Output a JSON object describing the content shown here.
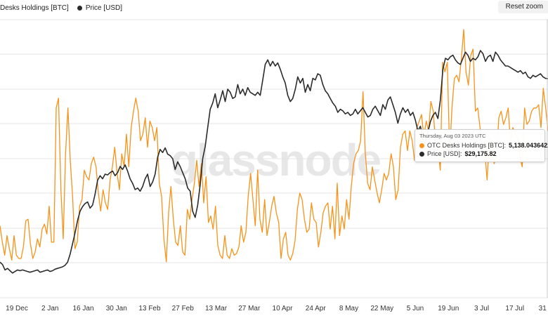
{
  "legend": {
    "otc_label": "Desks Holdings [BTC]",
    "price_label": "Price [USD]"
  },
  "toolbar": {
    "reset_zoom_label": "Reset zoom"
  },
  "watermark": "glassnode",
  "tooltip": {
    "date": "Thursday, Aug 03 2023 UTC",
    "otc_label": "OTC Desks Holdings [BTC]:",
    "otc_value": "5,138.04364217",
    "price_label": "Price [USD]:",
    "price_value": "$29,175.82"
  },
  "colors": {
    "otc": "#f7931a",
    "price": "#2b2b2b",
    "grid": "#e6e6e6",
    "background": "#ffffff"
  },
  "chart_data": {
    "type": "line",
    "title": "",
    "x_tick_labels": [
      "19 Dec",
      "2 Jan",
      "16 Jan",
      "30 Jan",
      "13 Feb",
      "27 Feb",
      "13 Mar",
      "27 Mar",
      "10 Apr",
      "24 Apr",
      "8 May",
      "22 May",
      "5 Jun",
      "19 Jun",
      "3 Jul",
      "17 Jul",
      "31 Jul"
    ],
    "xlabel": "",
    "ylabel": "",
    "grid": true,
    "legend_position": "top-left",
    "price_ylim": [
      15000,
      33000
    ],
    "otc_ylim": [
      0,
      8500
    ],
    "series": [
      {
        "name": "OTC Desks Holdings [BTC]",
        "axis": "left",
        "color": "#f7931a",
        "values": [
          2200,
          1700,
          1300,
          1900,
          1500,
          1150,
          1900,
          1300,
          1200,
          1200,
          1550,
          2350,
          2400,
          1650,
          1200,
          1400,
          1800,
          1550,
          2100,
          2250,
          1950,
          2800,
          1700,
          1700,
          5800,
          6100,
          3300,
          1800,
          4400,
          5800,
          4200,
          3100,
          1500,
          1700,
          2800,
          3000,
          3900,
          3700,
          3600,
          4100,
          4300,
          4000,
          3200,
          2650,
          3300,
          2900,
          2700,
          3600,
          4000,
          4600,
          3800,
          3300,
          4400,
          4000,
          5000,
          4000,
          5200,
          5700,
          6100,
          5700,
          4800,
          5000,
          5500,
          4600,
          5400,
          5200,
          4800,
          5200,
          3500,
          3100,
          1800,
          1100,
          2600,
          3400,
          2400,
          1700,
          1600,
          2200,
          1400,
          1300,
          2700,
          2400,
          3000,
          3500,
          4200,
          3400,
          4100,
          2900,
          3700,
          2300,
          2500,
          2100,
          2800,
          1600,
          1300,
          1200,
          1900,
          1300,
          1200,
          1500,
          1300,
          1350,
          1550,
          2200,
          1700,
          2000,
          3100,
          3800,
          3000,
          2200,
          3900,
          2400,
          2000,
          3000,
          1900,
          2300,
          2800,
          3100,
          2600,
          2300,
          1200,
          1800,
          2000,
          1300,
          1150,
          1350,
          1750,
          2700,
          3200,
          3000,
          2400,
          2000,
          2100,
          2900,
          2400,
          2300,
          1550,
          2000,
          2600,
          2800,
          2900,
          2100,
          2800,
          1800,
          3500,
          1900,
          2500,
          2100,
          3000,
          2400,
          3400,
          4100,
          4400,
          4500,
          4800,
          6300,
          4400,
          3500,
          3300,
          4000,
          3600,
          3200,
          2900,
          3300,
          3800,
          3600,
          3800,
          4400,
          4000,
          3000,
          3300,
          4600,
          5000,
          5100,
          4500,
          5100,
          4800,
          4200,
          5200,
          5400,
          5600,
          4900,
          5400,
          5100,
          6000,
          5700,
          4700,
          4600,
          3900,
          7200,
          6900,
          7200,
          4400,
          5800,
          6700,
          6800,
          6600,
          7300,
          8200,
          6900,
          6500,
          7400,
          7600,
          5700,
          5800,
          5200,
          4300,
          4500,
          3600,
          4900,
          4700,
          4100,
          4300,
          5500,
          5700,
          5300,
          5500,
          5800,
          4700,
          5200,
          5000,
          4900,
          4300,
          4000,
          5800,
          5300,
          5400,
          5700,
          5800,
          5800,
          5900,
          5200,
          6400,
          5800,
          5100
        ]
      },
      {
        "name": "Price [USD]",
        "axis": "right",
        "color": "#2b2b2b",
        "values": [
          17300,
          17150,
          16800,
          16900,
          16750,
          16600,
          16700,
          16800,
          16750,
          16800,
          16750,
          16700,
          16650,
          16700,
          16750,
          16800,
          16650,
          16700,
          16750,
          16800,
          16700,
          16750,
          16850,
          16900,
          16950,
          17000,
          17100,
          17300,
          17800,
          18500,
          19200,
          20000,
          20600,
          20900,
          21100,
          21200,
          20800,
          21000,
          21700,
          22600,
          22900,
          22700,
          23000,
          22950,
          23100,
          23200,
          22900,
          23100,
          23500,
          23300,
          23600,
          23200,
          22700,
          22400,
          22000,
          22100,
          21900,
          22200,
          22700,
          23000,
          22200,
          22500,
          23000,
          24100,
          24600,
          24400,
          24700,
          24300,
          24200,
          24000,
          23300,
          23800,
          23500,
          23100,
          22700,
          22100,
          21900,
          20600,
          20200,
          21000,
          22300,
          24000,
          24800,
          26000,
          27200,
          27600,
          28200,
          27300,
          27800,
          28400,
          27700,
          28500,
          28300,
          27900,
          28000,
          28800,
          28200,
          28500,
          28100,
          28600,
          28300,
          28200,
          28100,
          28300,
          28100,
          29100,
          30100,
          30400,
          30000,
          30300,
          30000,
          30200,
          29800,
          29300,
          28900,
          28100,
          27700,
          27900,
          28500,
          29300,
          28900,
          29200,
          28300,
          28800,
          28400,
          29200,
          29100,
          29500,
          29400,
          28800,
          28400,
          28200,
          27900,
          27600,
          27400,
          27000,
          27200,
          27100,
          26900,
          27000,
          26800,
          26900,
          27200,
          26900,
          27100,
          27300,
          27000,
          26700,
          26800,
          27200,
          27400,
          27100,
          26800,
          27500,
          27200,
          27800,
          28000,
          27500,
          27000,
          26300,
          26900,
          27300,
          27000,
          27200,
          26800,
          27000,
          26500,
          25800,
          26100,
          25300,
          25000,
          25700,
          26400,
          26800,
          27000,
          26600,
          27800,
          29800,
          30500,
          30400,
          30600,
          30700,
          30400,
          30200,
          30100,
          30500,
          30900,
          30700,
          30300,
          30500,
          30400,
          30600,
          31000,
          30800,
          30300,
          30600,
          30700,
          30300,
          30900,
          30700,
          30400,
          30200,
          30000,
          30000,
          29900,
          29800,
          29700,
          29600,
          29700,
          29500,
          29600,
          29300,
          29200,
          29400,
          29300,
          29400,
          29500,
          29300,
          29200,
          29175.82
        ]
      }
    ]
  }
}
